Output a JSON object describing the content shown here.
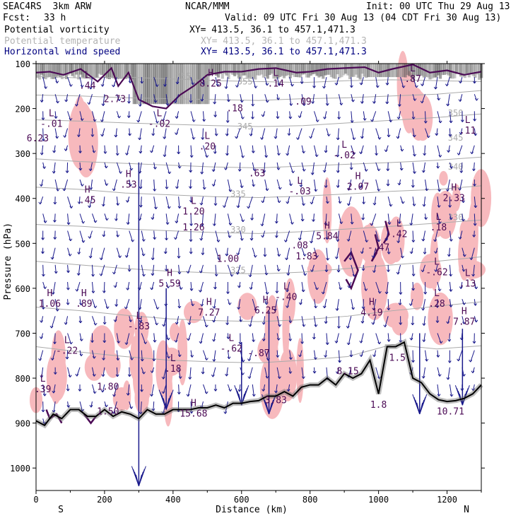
{
  "header": {
    "model": "SEAC4RS  3km ARW",
    "org": "NCAR/MMM",
    "init": "Init: 00 UTC Thu 29 Aug 13",
    "fcst_label": "Fcst:",
    "fcst_value": "33 h",
    "valid": "Valid: 09 UTC Fri 30 Aug 13 (04 CDT Fri 30 Aug 13)"
  },
  "fields": [
    {
      "name": "Potential vorticity",
      "xy": "XY= 413.5, 36.1 to 457.1,471.3",
      "color": "#000000"
    },
    {
      "name": "Potential temperature",
      "xy": "XY= 413.5, 36.1 to 457.1,471.3",
      "color": "#b4b4b4"
    },
    {
      "name": "Horizontal wind speed",
      "xy": "XY= 413.5, 36.1 to 457.1,471.3",
      "color": "#000080"
    }
  ],
  "colors": {
    "pv": "#4b0a55",
    "theta": "#aaaaaa",
    "wind": "#1a1a8c",
    "pink": "#f7b9bd",
    "terrain": "#000000"
  },
  "chart_data": {
    "type": "cross-section",
    "xlabel": "Distance (km)",
    "ylabel": "Pressure (hPa)",
    "xlim": [
      0,
      1300
    ],
    "ylim": [
      100,
      1050
    ],
    "x_ticks": [
      "0",
      "200",
      "400",
      "600",
      "800",
      "1000",
      "1200"
    ],
    "x_tick_values": [
      0,
      200,
      400,
      600,
      800,
      1000,
      1200
    ],
    "y_ticks": [
      "100",
      "200",
      "300",
      "400",
      "500",
      "600",
      "700",
      "800",
      "900",
      "1000"
    ],
    "y_tick_values": [
      100,
      200,
      300,
      400,
      500,
      600,
      700,
      800,
      900,
      1000
    ],
    "left_end": "S",
    "right_end": "N",
    "theta_levels": [
      {
        "label": "355",
        "p": [
          128,
          132,
          130,
          134,
          138,
          140,
          142,
          138,
          136,
          138,
          140
        ]
      },
      {
        "label": "350",
        "p": [
          170,
          172,
          176,
          178,
          180,
          182,
          178,
          176,
          172,
          168,
          160
        ]
      },
      {
        "label": "345",
        "p": [
          225,
          228,
          232,
          235,
          238,
          240,
          238,
          232,
          226,
          220,
          212
        ]
      },
      {
        "label": "340",
        "p": [
          312,
          318,
          322,
          326,
          330,
          332,
          328,
          324,
          320,
          315,
          308
        ]
      },
      {
        "label": "335",
        "p": [
          375,
          380,
          388,
          392,
          396,
          398,
          395,
          390,
          384,
          380,
          372
        ]
      },
      {
        "label": "330",
        "p": [
          458,
          462,
          468,
          472,
          476,
          478,
          474,
          468,
          462,
          455,
          448
        ]
      },
      {
        "label": "325",
        "p": [
          540,
          548,
          556,
          562,
          566,
          568,
          564,
          556,
          548,
          540,
          530
        ]
      },
      {
        "label": "320",
        "p": [
          642,
          650,
          660,
          668,
          672,
          674,
          670,
          662,
          650,
          640,
          630
        ]
      },
      {
        "label": "315",
        "p": [
          730,
          742,
          752,
          760,
          764,
          766,
          760,
          752,
          744,
          735,
          728
        ]
      }
    ],
    "theta_label_points": [
      {
        "label": "355",
        "x": 430,
        "p": 128
      },
      {
        "label": "355",
        "x": 610,
        "p": 140
      },
      {
        "label": "350",
        "x": 1225,
        "p": 210
      },
      {
        "label": "345",
        "x": 610,
        "p": 240
      },
      {
        "label": "345",
        "x": 1225,
        "p": 265
      },
      {
        "label": "340",
        "x": 1225,
        "p": 330
      },
      {
        "label": "335",
        "x": 590,
        "p": 390
      },
      {
        "label": "330",
        "x": 590,
        "p": 470
      },
      {
        "label": "330",
        "x": 1225,
        "p": 442
      },
      {
        "label": "325",
        "x": 590,
        "p": 560
      }
    ],
    "extrema": [
      {
        "type": "L",
        "value": ".44",
        "x": 150,
        "p": 145
      },
      {
        "type": "",
        "value": "2.73",
        "x": 230,
        "p": 175
      },
      {
        "type": "H",
        "value": "8.25",
        "x": 510,
        "p": 140
      },
      {
        "type": "",
        "value": ".18",
        "x": 580,
        "p": 195
      },
      {
        "type": "L",
        "value": ".14",
        "x": 700,
        "p": 140
      },
      {
        "type": "",
        "value": ".09",
        "x": 780,
        "p": 180
      },
      {
        "type": "L",
        "value": ".87",
        "x": 1100,
        "p": 130
      },
      {
        "type": "L",
        "value": "-.01",
        "x": 45,
        "p": 230
      },
      {
        "type": "",
        "value": "6.23",
        "x": 5,
        "p": 262
      },
      {
        "type": "L",
        "value": "-.02",
        "x": 360,
        "p": 230
      },
      {
        "type": "L",
        "value": ".20",
        "x": 500,
        "p": 280
      },
      {
        "type": "L",
        "value": "-.02",
        "x": 900,
        "p": 300
      },
      {
        "type": "L",
        "value": ".11",
        "x": 1260,
        "p": 245
      },
      {
        "type": "H",
        "value": ".53",
        "x": 270,
        "p": 365
      },
      {
        "type": "",
        "value": ".63",
        "x": 645,
        "p": 340
      },
      {
        "type": "L",
        "value": "-.03",
        "x": 770,
        "p": 380
      },
      {
        "type": "H",
        "value": "2.07",
        "x": 940,
        "p": 370
      },
      {
        "type": "H",
        "value": "2.33",
        "x": 1220,
        "p": 395
      },
      {
        "type": "H",
        "value": ".45",
        "x": 150,
        "p": 400
      },
      {
        "type": "L",
        "value": "1.20",
        "x": 460,
        "p": 425
      },
      {
        "type": "",
        "value": "1.26",
        "x": 460,
        "p": 460
      },
      {
        "type": "L",
        "value": ".18",
        "x": 1175,
        "p": 460
      },
      {
        "type": "H",
        "value": "5.84",
        "x": 850,
        "p": 480
      },
      {
        "type": "L",
        "value": ".42",
        "x": 1060,
        "p": 475
      },
      {
        "type": "",
        "value": ".08",
        "x": 770,
        "p": 500
      },
      {
        "type": "",
        "value": "-.47",
        "x": 1000,
        "p": 505
      },
      {
        "type": "",
        "value": "1.00",
        "x": 560,
        "p": 530
      },
      {
        "type": "",
        "value": "1.83",
        "x": 790,
        "p": 525
      },
      {
        "type": "H",
        "value": "5.59",
        "x": 390,
        "p": 585
      },
      {
        "type": "L",
        "value": "-.62",
        "x": 1170,
        "p": 560
      },
      {
        "type": "L",
        "value": ".13",
        "x": 1260,
        "p": 585
      },
      {
        "type": "L",
        "value": "-.40",
        "x": 730,
        "p": 615
      },
      {
        "type": "H",
        "value": "1.06",
        "x": 40,
        "p": 630
      },
      {
        "type": "H",
        "value": ".89",
        "x": 140,
        "p": 630
      },
      {
        "type": "H",
        "value": "7.27",
        "x": 505,
        "p": 650
      },
      {
        "type": "H",
        "value": "6.25",
        "x": 670,
        "p": 645
      },
      {
        "type": "H",
        "value": "4.19",
        "x": 980,
        "p": 650
      },
      {
        "type": "L",
        "value": ".28",
        "x": 1170,
        "p": 630
      },
      {
        "type": "H",
        "value": "7.87",
        "x": 1250,
        "p": 670
      },
      {
        "type": "L",
        "value": "-.83",
        "x": 300,
        "p": 680
      },
      {
        "type": "L",
        "value": "-.22",
        "x": 90,
        "p": 735
      },
      {
        "type": "L",
        "value": "-.62",
        "x": 570,
        "p": 730
      },
      {
        "type": "",
        "value": "-.87",
        "x": 650,
        "p": 740
      },
      {
        "type": "",
        "value": "1.5",
        "x": 1055,
        "p": 750
      },
      {
        "type": "L",
        "value": ".18",
        "x": 400,
        "p": 775
      },
      {
        "type": "L",
        "value": ".39",
        "x": 20,
        "p": 820
      },
      {
        "type": "",
        "value": "1.80",
        "x": 210,
        "p": 815
      },
      {
        "type": "",
        "value": "8.15",
        "x": 910,
        "p": 780
      },
      {
        "type": "",
        "value": "3.83",
        "x": 700,
        "p": 845
      },
      {
        "type": "H",
        "value": "15.68",
        "x": 460,
        "p": 875
      },
      {
        "type": "",
        "value": "1.50",
        "x": 210,
        "p": 870
      },
      {
        "type": "",
        "value": "1.8",
        "x": 1000,
        "p": 855
      },
      {
        "type": "",
        "value": "10.71",
        "x": 1210,
        "p": 870
      }
    ],
    "terrain_x": [
      0,
      25,
      50,
      75,
      100,
      125,
      150,
      175,
      200,
      225,
      250,
      275,
      300,
      325,
      350,
      375,
      400,
      425,
      450,
      475,
      500,
      525,
      550,
      575,
      600,
      625,
      650,
      675,
      700,
      725,
      750,
      775,
      800,
      825,
      850,
      875,
      900,
      925,
      950,
      975,
      1000,
      1025,
      1050,
      1075,
      1100,
      1125,
      1150,
      1175,
      1200,
      1225,
      1250,
      1275,
      1300
    ],
    "terrain_p": [
      895,
      905,
      880,
      890,
      870,
      870,
      885,
      885,
      870,
      885,
      875,
      880,
      890,
      870,
      880,
      880,
      870,
      870,
      870,
      866,
      866,
      860,
      866,
      856,
      856,
      852,
      850,
      840,
      840,
      830,
      840,
      820,
      815,
      815,
      800,
      815,
      790,
      800,
      790,
      760,
      835,
      730,
      730,
      720,
      800,
      810,
      835,
      848,
      852,
      850,
      845,
      835,
      815
    ]
  }
}
